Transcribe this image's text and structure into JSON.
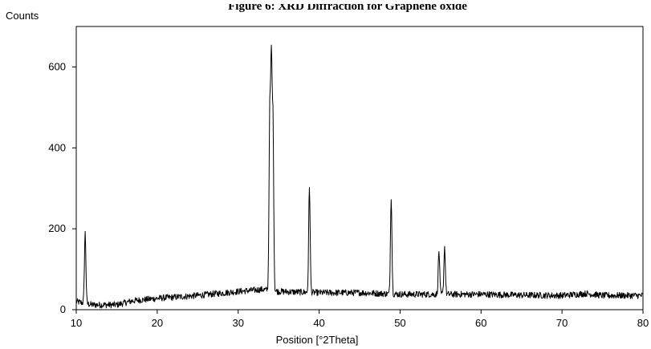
{
  "figure": {
    "title": "Figure 6: XRD Diffraction for Graphene oxide"
  },
  "chart_data": {
    "type": "line",
    "title": "Figure 6: XRD Diffraction for Graphene oxide",
    "xlabel": "Position [°2Theta]",
    "ylabel": "Counts",
    "xlim": [
      10,
      80
    ],
    "ylim": [
      0,
      700
    ],
    "x_ticks": [
      "10",
      "20",
      "30",
      "40",
      "50",
      "60",
      "70",
      "80"
    ],
    "y_ticks": [
      "0",
      "200",
      "400",
      "600"
    ],
    "grid": false,
    "legend": "none",
    "line_color": "#000000",
    "background_baseline": [
      [
        10,
        20
      ],
      [
        12,
        12
      ],
      [
        15,
        12
      ],
      [
        17,
        22
      ],
      [
        20,
        28
      ],
      [
        25,
        35
      ],
      [
        30,
        45
      ],
      [
        33,
        50
      ],
      [
        35,
        45
      ],
      [
        40,
        42
      ],
      [
        45,
        42
      ],
      [
        50,
        38
      ],
      [
        55,
        38
      ],
      [
        60,
        38
      ],
      [
        65,
        36
      ],
      [
        70,
        35
      ],
      [
        73,
        40
      ],
      [
        75,
        35
      ],
      [
        80,
        35
      ]
    ],
    "noise_amplitude": 8,
    "peaks": [
      {
        "position": 11.1,
        "counts": 190
      },
      {
        "position": 33.9,
        "counts": 470
      },
      {
        "position": 34.1,
        "counts": 585
      },
      {
        "position": 34.3,
        "counts": 450
      },
      {
        "position": 38.8,
        "counts": 305
      },
      {
        "position": 48.9,
        "counts": 280
      },
      {
        "position": 54.8,
        "counts": 145
      },
      {
        "position": 55.5,
        "counts": 155
      }
    ]
  }
}
